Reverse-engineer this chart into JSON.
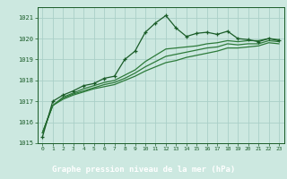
{
  "title": "Graphe pression niveau de la mer (hPa)",
  "bg_color": "#cce8e0",
  "plot_bg_color": "#cce8e0",
  "bottom_bar_color": "#2d6e3a",
  "grid_color": "#aacfc8",
  "line_color_main": "#1a5c28",
  "line_color_smooth": "#2d7a3a",
  "xlim": [
    -0.5,
    23.5
  ],
  "ylim": [
    1015,
    1021.5
  ],
  "yticks": [
    1015,
    1016,
    1017,
    1018,
    1019,
    1020,
    1021
  ],
  "xticks": [
    0,
    1,
    2,
    3,
    4,
    5,
    6,
    7,
    8,
    9,
    10,
    11,
    12,
    13,
    14,
    15,
    16,
    17,
    18,
    19,
    20,
    21,
    22,
    23
  ],
  "line1_x": [
    0,
    1,
    2,
    3,
    4,
    5,
    6,
    7,
    8,
    9,
    10,
    11,
    12,
    13,
    14,
    15,
    16,
    17,
    18,
    19,
    20,
    21,
    22,
    23
  ],
  "line1_y": [
    1015.3,
    1017.0,
    1017.3,
    1017.5,
    1017.75,
    1017.85,
    1018.1,
    1018.2,
    1019.0,
    1019.4,
    1020.3,
    1020.75,
    1021.1,
    1020.5,
    1020.1,
    1020.25,
    1020.3,
    1020.2,
    1020.35,
    1020.0,
    1019.95,
    1019.85,
    1020.0,
    1019.9
  ],
  "line2_x": [
    0,
    1,
    2,
    3,
    4,
    5,
    6,
    7,
    8,
    9,
    10,
    11,
    12,
    13,
    14,
    15,
    16,
    17,
    18,
    19,
    20,
    21,
    22,
    23
  ],
  "line2_y": [
    1015.5,
    1016.8,
    1017.2,
    1017.4,
    1017.6,
    1017.75,
    1017.9,
    1018.0,
    1018.25,
    1018.5,
    1018.9,
    1019.2,
    1019.5,
    1019.55,
    1019.6,
    1019.65,
    1019.75,
    1019.8,
    1019.9,
    1019.85,
    1019.9,
    1019.9,
    1020.0,
    1019.95
  ],
  "line3_x": [
    0,
    1,
    2,
    3,
    4,
    5,
    6,
    7,
    8,
    9,
    10,
    11,
    12,
    13,
    14,
    15,
    16,
    17,
    18,
    19,
    20,
    21,
    22,
    23
  ],
  "line3_y": [
    1015.5,
    1016.8,
    1017.15,
    1017.35,
    1017.5,
    1017.65,
    1017.8,
    1017.9,
    1018.1,
    1018.35,
    1018.65,
    1018.9,
    1019.15,
    1019.25,
    1019.35,
    1019.45,
    1019.55,
    1019.6,
    1019.75,
    1019.7,
    1019.75,
    1019.75,
    1019.9,
    1019.85
  ],
  "line4_x": [
    0,
    1,
    2,
    3,
    4,
    5,
    6,
    7,
    8,
    9,
    10,
    11,
    12,
    13,
    14,
    15,
    16,
    17,
    18,
    19,
    20,
    21,
    22,
    23
  ],
  "line4_y": [
    1015.5,
    1016.8,
    1017.1,
    1017.3,
    1017.45,
    1017.6,
    1017.7,
    1017.8,
    1018.0,
    1018.2,
    1018.45,
    1018.65,
    1018.85,
    1018.95,
    1019.1,
    1019.2,
    1019.3,
    1019.4,
    1019.55,
    1019.55,
    1019.6,
    1019.65,
    1019.8,
    1019.75
  ]
}
